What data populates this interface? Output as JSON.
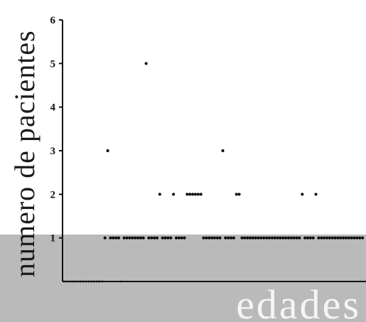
{
  "chart_data": {
    "type": "scatter",
    "title": "",
    "xlabel": "edades",
    "ylabel": "numero de pacientes",
    "ylim": [
      0,
      6
    ],
    "yticks": [
      "1",
      "2",
      "3",
      "4",
      "5",
      "6"
    ],
    "grid": false,
    "x": [
      1,
      2,
      3,
      4,
      5,
      6,
      7,
      8,
      9,
      10,
      11,
      12,
      13,
      14,
      15,
      16,
      17,
      18,
      19,
      20,
      21,
      22,
      23,
      24,
      25,
      26,
      27,
      28,
      29,
      30,
      31,
      32,
      33,
      34,
      35,
      36,
      37,
      38,
      39,
      40,
      41,
      42,
      43,
      44,
      45,
      46,
      47,
      48,
      49,
      50,
      51,
      52,
      53,
      54,
      55,
      56,
      57,
      58,
      59,
      60,
      61,
      62,
      63,
      64,
      65,
      66,
      67,
      68,
      69,
      70,
      71,
      72,
      73,
      74,
      75,
      76,
      77,
      78,
      79,
      80,
      81,
      82,
      83,
      84,
      85,
      86,
      87,
      88,
      89,
      90,
      91,
      92,
      93,
      94,
      95,
      96,
      97,
      98,
      99,
      100,
      101,
      102,
      103,
      104,
      105,
      106,
      107,
      108,
      109,
      110
    ],
    "y": [
      0,
      0,
      0,
      0,
      0,
      0,
      0,
      0,
      0,
      0,
      0,
      0,
      0,
      0,
      0,
      1,
      3,
      1,
      1,
      1,
      1,
      0,
      1,
      1,
      1,
      1,
      1,
      1,
      1,
      1,
      5,
      1,
      1,
      1,
      1,
      2,
      1,
      1,
      1,
      1,
      2,
      1,
      1,
      1,
      1,
      2,
      2,
      2,
      2,
      2,
      2,
      1,
      1,
      1,
      1,
      1,
      1,
      1,
      3,
      1,
      1,
      1,
      1,
      2,
      2,
      1,
      1,
      1,
      1,
      1,
      1,
      1,
      1,
      1,
      1,
      1,
      1,
      1,
      1,
      1,
      1,
      1,
      1,
      1,
      1,
      1,
      1,
      2,
      1,
      1,
      1,
      1,
      2,
      1,
      1,
      1,
      1,
      1,
      1,
      1,
      1,
      1,
      1,
      1,
      1,
      1,
      1,
      1,
      1,
      1
    ]
  }
}
